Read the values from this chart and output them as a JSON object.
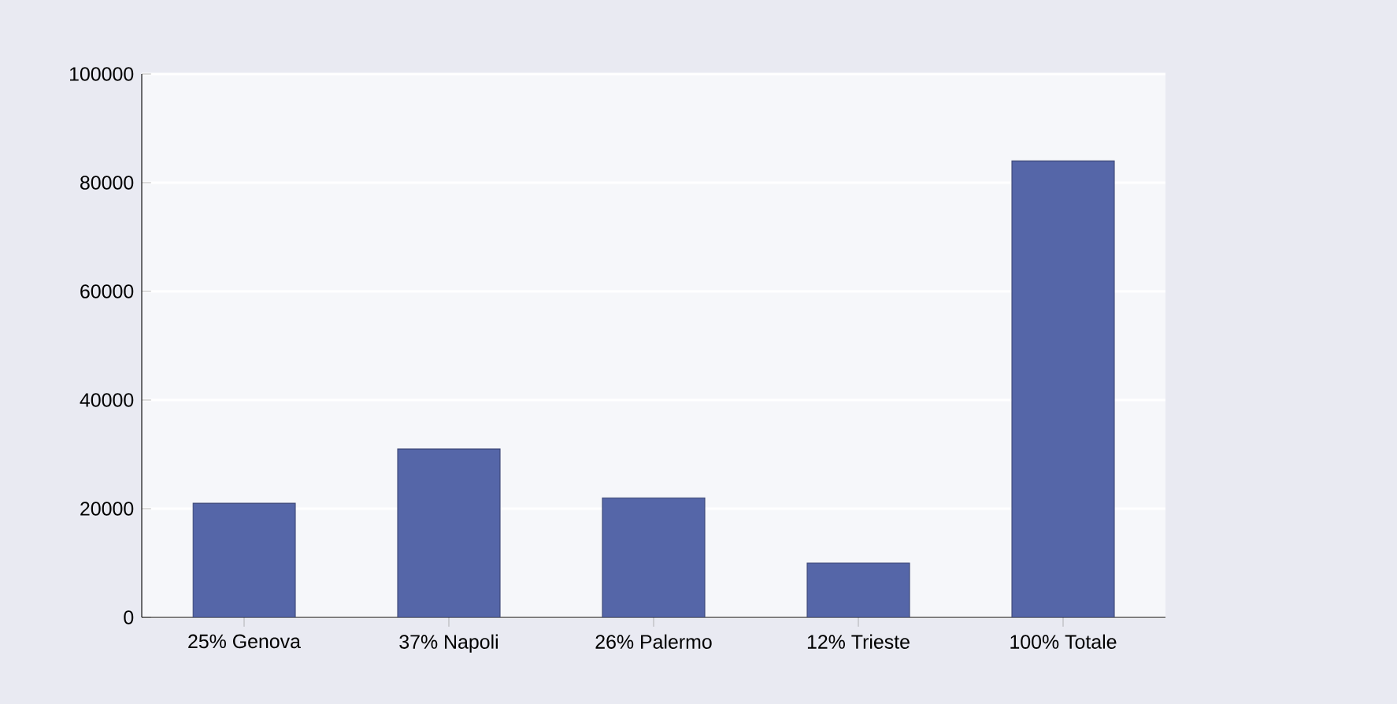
{
  "chart_data": {
    "type": "bar",
    "categories": [
      "25% Genova",
      "37% Napoli",
      "26% Palermo",
      "12% Trieste",
      "100% Totale"
    ],
    "values": [
      21000,
      31000,
      22000,
      10000,
      84000
    ],
    "color": "#5566a8",
    "ylim": [
      0,
      100000
    ],
    "yticks": [
      0,
      20000,
      40000,
      60000,
      80000,
      100000
    ],
    "grid": "y"
  }
}
